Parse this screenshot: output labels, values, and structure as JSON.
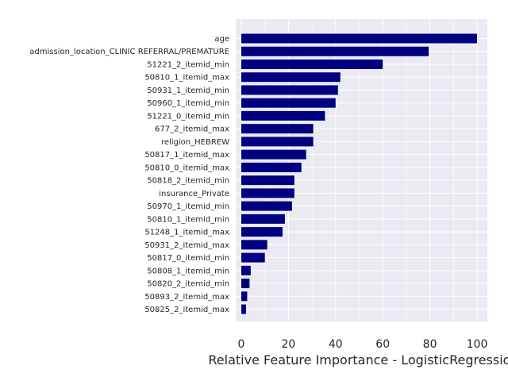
{
  "chart_data": {
    "type": "bar",
    "orientation": "horizontal",
    "xlabel": "Relative Feature Importance - LogisticRegression",
    "ylabel": "",
    "xlim": [
      0,
      104
    ],
    "xticks": [
      0,
      20,
      40,
      60,
      80,
      100
    ],
    "grid": true,
    "bar_color": "#000080",
    "background_color": "#EAEAF2",
    "grid_color": "#FFFFFF",
    "categories": [
      "age",
      "admission_location_CLINIC REFERRAL/PREMATURE",
      "51221_2_itemid_min",
      "50810_1_itemid_max",
      "50931_1_itemid_min",
      "50960_1_itemid_min",
      "51221_0_itemid_min",
      "677_2_itemid_max",
      "religion_HEBREW",
      "50817_1_itemid_max",
      "50810_0_itemid_max",
      "50818_2_itemid_min",
      "insurance_Private",
      "50970_1_itemid_min",
      "50810_1_itemid_min",
      "51248_1_itemid_max",
      "50931_2_itemid_max",
      "50817_0_itemid_min",
      "50808_1_itemid_min",
      "50820_2_itemid_min",
      "50893_2_itemid_max",
      "50825_2_itemid_max"
    ],
    "values": [
      100,
      79.5,
      60,
      42,
      41,
      40,
      35.5,
      30.5,
      30.5,
      27.5,
      25.5,
      22.5,
      22.5,
      21.5,
      18.5,
      17.5,
      11,
      10,
      4,
      3.5,
      2.5,
      2
    ]
  }
}
